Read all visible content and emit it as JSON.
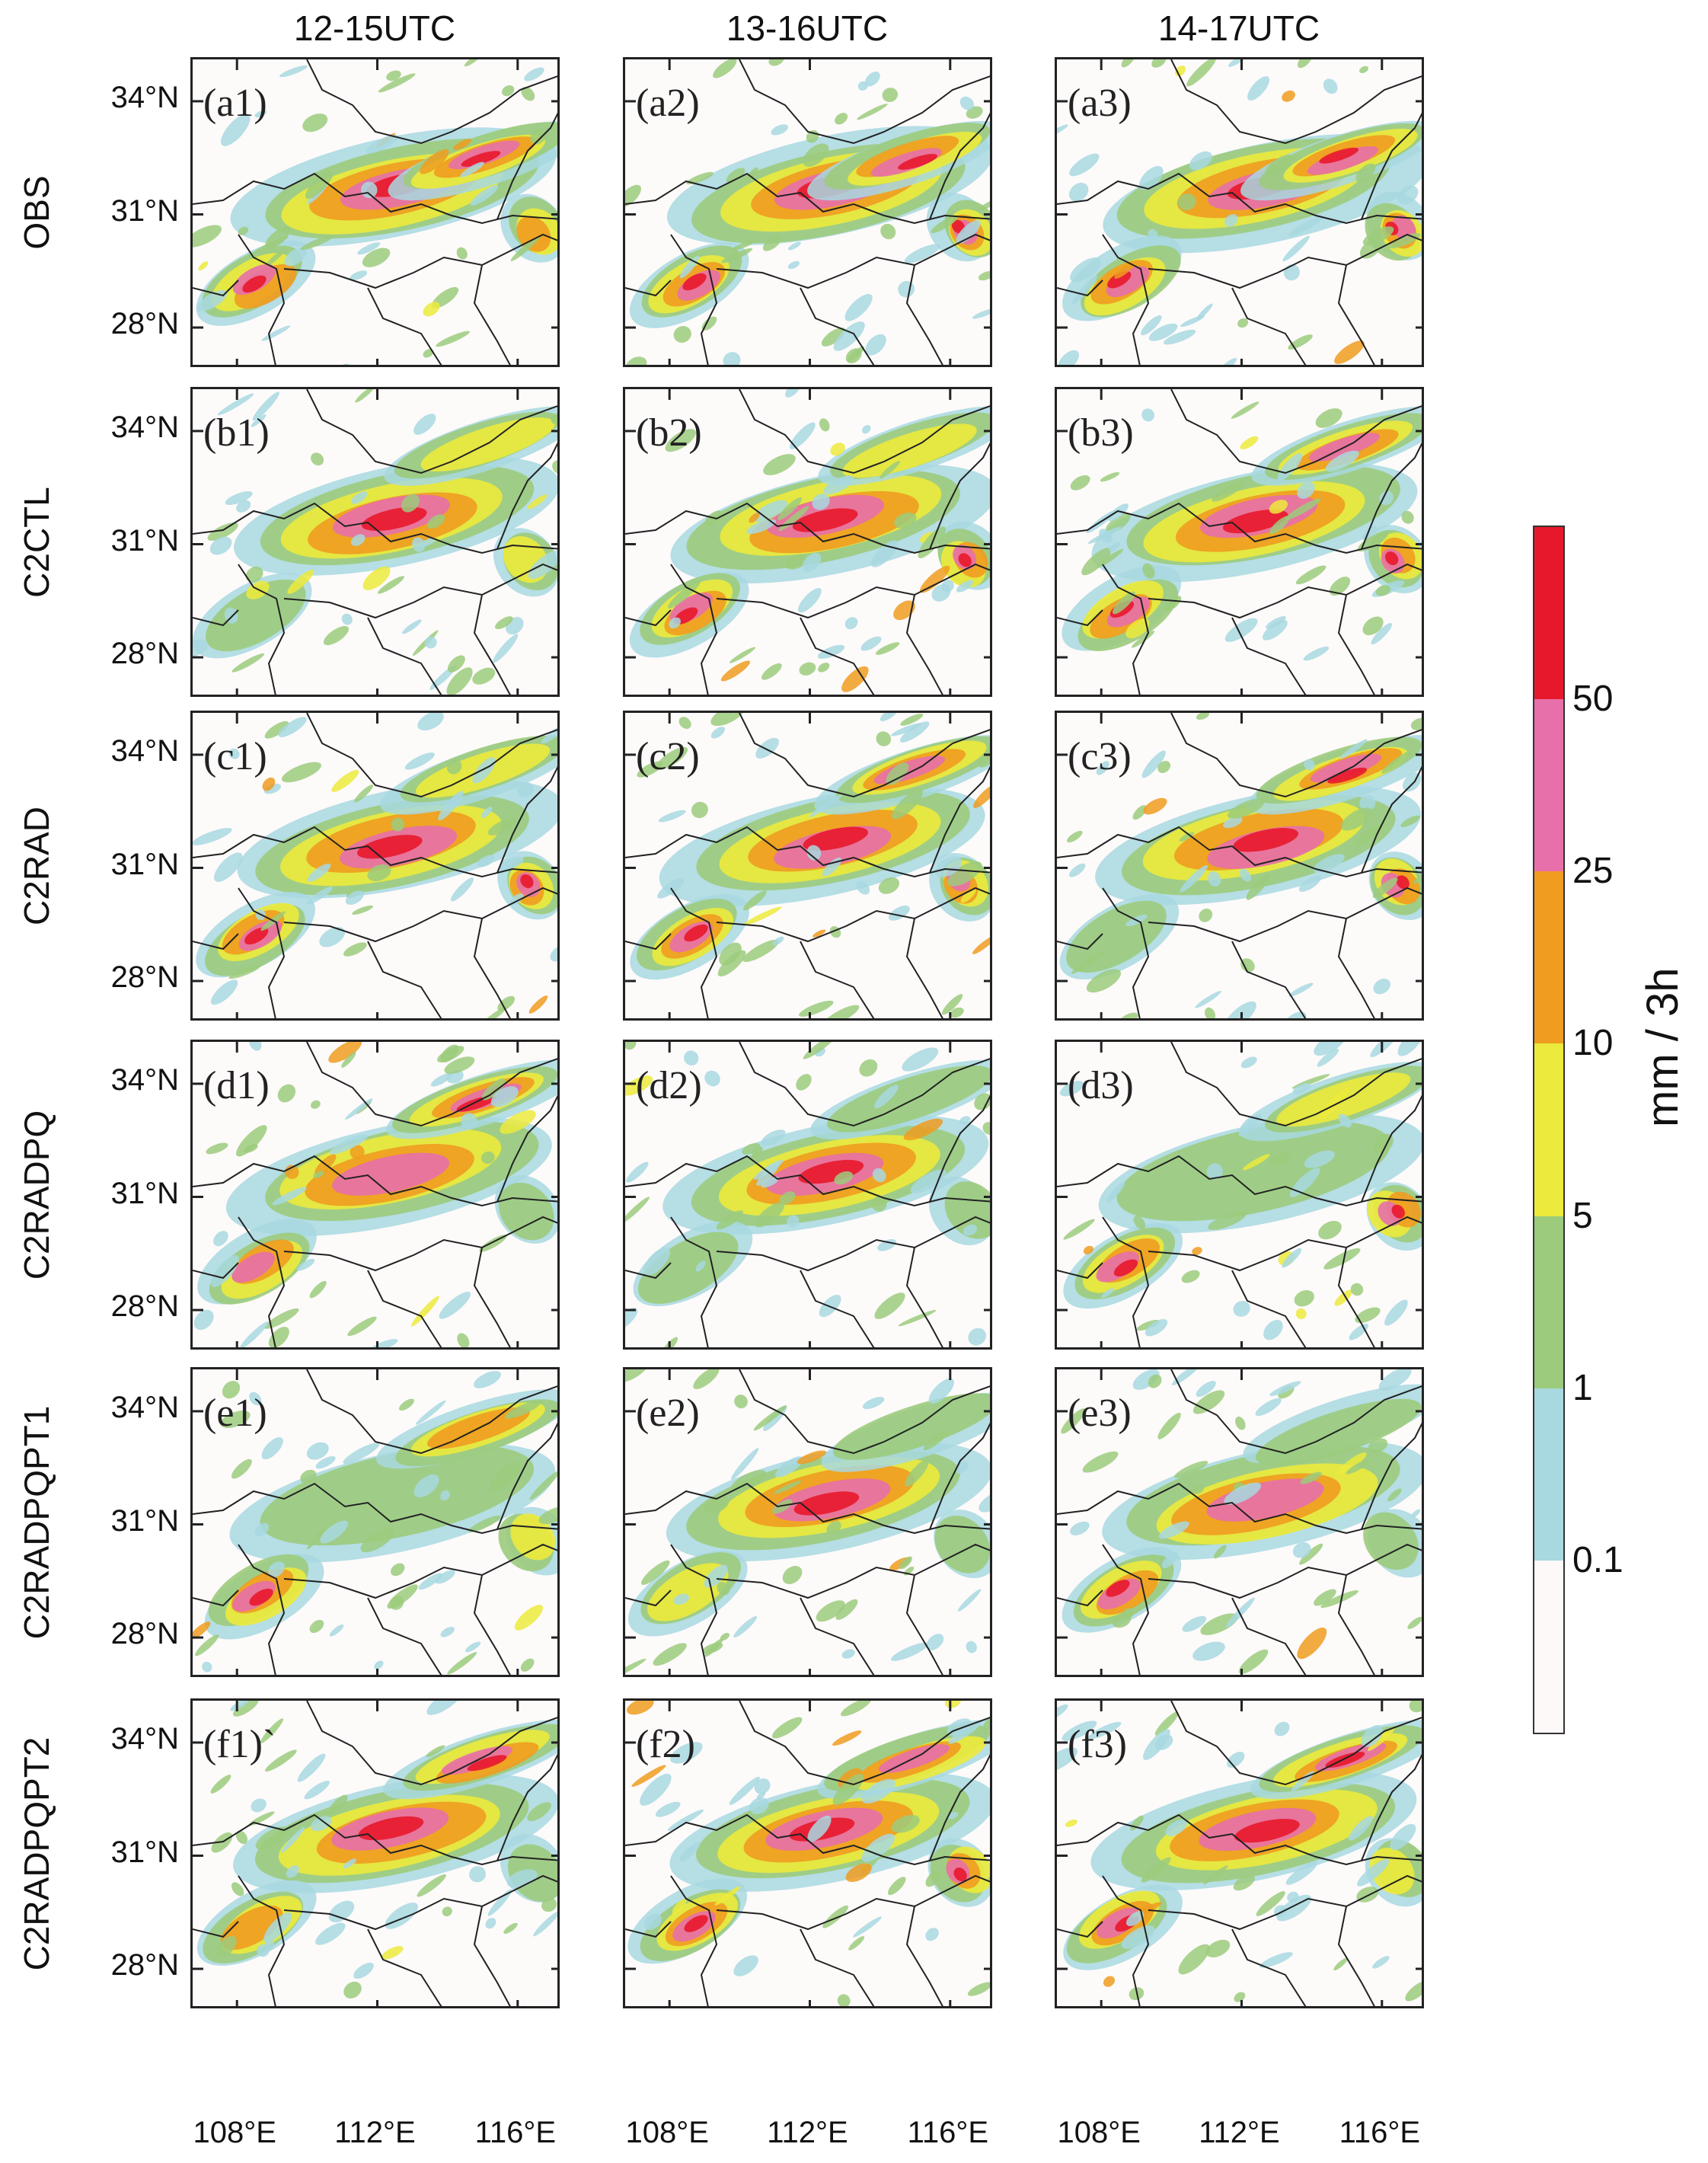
{
  "figure": {
    "columns": [
      "12-15UTC",
      "13-16UTC",
      "14-17UTC"
    ],
    "rows": [
      "OBS",
      "C2CTL",
      "C2RAD",
      "C2RADPQ",
      "C2RADPQPT1",
      "C2RADPQPT2"
    ],
    "panel_labels": [
      [
        "(a1)",
        "(a2)",
        "(a3)"
      ],
      [
        "(b1)",
        "(b2)",
        "(b3)"
      ],
      [
        "(c1)",
        "(c2)",
        "(c3)"
      ],
      [
        "(d1)",
        "(d2)",
        "(d3)"
      ],
      [
        "(e1)",
        "(e2)",
        "(e3)"
      ],
      [
        "(f1)`",
        "(f2)",
        "(f3)"
      ]
    ],
    "lat_ticks": [
      "34°N",
      "31°N",
      "28°N"
    ],
    "lon_ticks": [
      "108°E",
      "112°E",
      "116°E"
    ],
    "lon_ticks_col3": [
      "108°E",
      "112°E",
      "116°E"
    ]
  },
  "colorbar": {
    "units": "mm / 3h",
    "labels": [
      "0.1",
      "1",
      "5",
      "10",
      "25",
      "50"
    ],
    "colors": [
      "#fdf9f9",
      "#a8d8e0",
      "#9ccb7c",
      "#ecea3c",
      "#ef9c20",
      "#e770aa",
      "#e8182c"
    ]
  }
}
